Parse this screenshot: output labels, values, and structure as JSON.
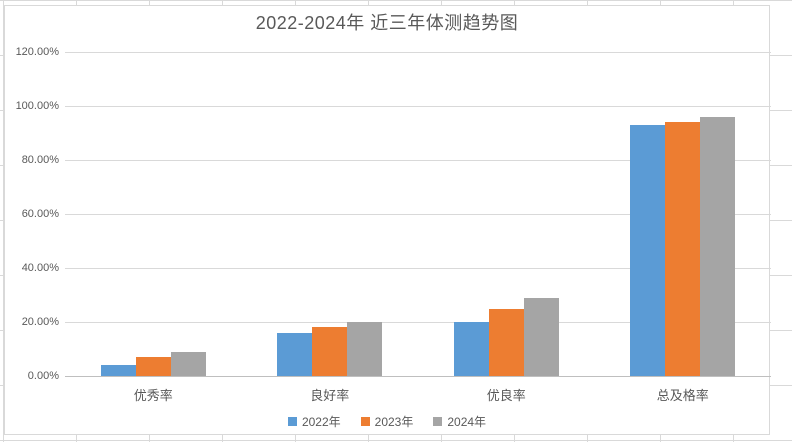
{
  "chart_data": {
    "type": "bar",
    "title": "2022-2024年 近三年体测趋势图",
    "categories": [
      "优秀率",
      "良好率",
      "优良率",
      "总及格率"
    ],
    "series": [
      {
        "name": "2022年",
        "color": "#5B9BD5",
        "values": [
          4,
          16,
          20,
          93
        ]
      },
      {
        "name": "2023年",
        "color": "#ED7D31",
        "values": [
          7,
          18,
          25,
          94
        ]
      },
      {
        "name": "2024年",
        "color": "#A5A5A5",
        "values": [
          9,
          20,
          29,
          96
        ]
      }
    ],
    "unit": "%",
    "ylim": [
      0,
      120
    ],
    "ytick_interval": 20,
    "ytick_labels": [
      "0.00%",
      "20.00%",
      "40.00%",
      "60.00%",
      "80.00%",
      "100.00%",
      "120.00%"
    ],
    "grid": true,
    "legend_position": "bottom",
    "text_color": "#595959",
    "gridline_color": "#D9D9D9",
    "axis_line_color": "#BFBFBF"
  }
}
